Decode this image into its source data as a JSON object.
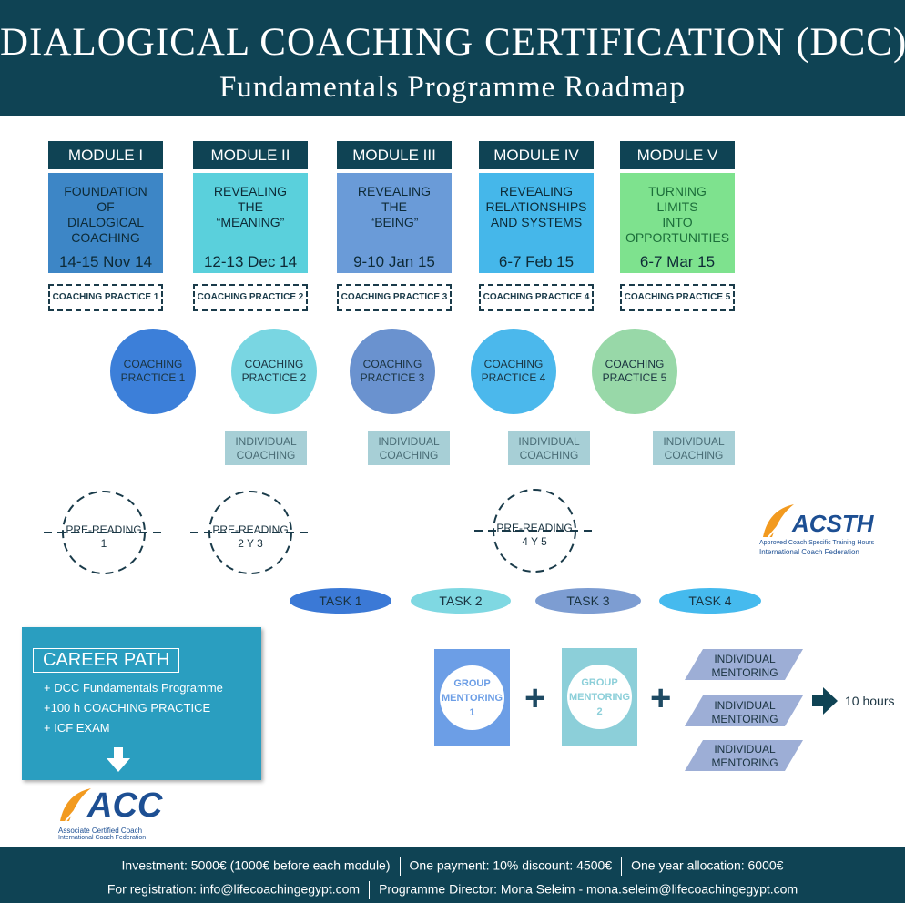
{
  "header": {
    "title": "DIALOGICAL COACHING CERTIFICATION (DCC)",
    "subtitle": "Fundamentals Programme Roadmap"
  },
  "modules": [
    {
      "label": "MODULE I",
      "name": "FOUNDATION\nOF\nDIALOGICAL\nCOACHING",
      "date": "14-15 Nov 14",
      "color": "#3d86c6",
      "text_color": "#0d2a36"
    },
    {
      "label": "MODULE II",
      "name": "REVEALING\nTHE\n“MEANING”",
      "date": "12-13 Dec 14",
      "color": "#5ad0dc",
      "text_color": "#0d2a36"
    },
    {
      "label": "MODULE III",
      "name": "REVEALING\nTHE\n“BEING”",
      "date": "9-10 Jan 15",
      "color": "#6a9bd8",
      "text_color": "#0d2a36"
    },
    {
      "label": "MODULE IV",
      "name": "REVEALING\nRELATIONSHIPS\nAND SYSTEMS",
      "date": "6-7 Feb 15",
      "color": "#45b7ea",
      "text_color": "#0d2a36"
    },
    {
      "label": "MODULE V",
      "name": "TURNING\nLIMITS\nINTO\nOPPORTUNITIES",
      "date": "6-7 Mar 15",
      "color": "#7ee28e",
      "text_color": "#1c6e3a"
    }
  ],
  "coaching_practice_labels": [
    "COACHING PRACTICE 1",
    "COACHING PRACTICE 2",
    "COACHING PRACTICE 3",
    "COACHING PRACTICE 4",
    "COACHING PRACTICE 5"
  ],
  "practice_circles": [
    {
      "label": "COACHING\nPRACTICE 1",
      "color": "#3c7fd9"
    },
    {
      "label": "COACHING\nPRACTICE 2",
      "color": "#79d6e2"
    },
    {
      "label": "COACHING\nPRACTICE 3",
      "color": "#6a92cf"
    },
    {
      "label": "COACHING\nPRACTICE 4",
      "color": "#4bb8ec"
    },
    {
      "label": "COACHING\nPRACTICE 5",
      "color": "#98d8a8"
    }
  ],
  "individual_coaching": [
    "INDIVIDUAL\nCOACHING",
    "INDIVIDUAL\nCOACHING",
    "INDIVIDUAL\nCOACHING",
    "INDIVIDUAL\nCOACHING"
  ],
  "pre_reading": [
    "PRE-READING\n1",
    "PRE-READING\n2 Y 3",
    "PRE-READING\n4 Y 5"
  ],
  "tasks": [
    {
      "label": "TASK 1",
      "color": "#3b79d6"
    },
    {
      "label": "TASK 2",
      "color": "#7fd8e2"
    },
    {
      "label": "TASK 3",
      "color": "#7d9dd2"
    },
    {
      "label": "TASK 4",
      "color": "#45baee"
    }
  ],
  "acsth_logo": {
    "text": "ACSTH",
    "line1": "Approved Coach Specific Training Hours",
    "line2": "International Coach Federation"
  },
  "career_path": {
    "title": "CAREER PATH",
    "items": [
      "+ DCC Fundamentals Programme",
      "+100 h COACHING PRACTICE",
      "+ ICF EXAM"
    ]
  },
  "acc_logo": {
    "text": "ACC",
    "line1": "Associate Certified Coach",
    "line2": "International Coach Federation"
  },
  "group_mentoring": [
    {
      "label": "GROUP\nMENTORING\n1",
      "color": "#6c9ee6",
      "text_color": "#6c9ee6"
    },
    {
      "label": "GROUP\nMENTORING\n2",
      "color": "#8ccfd9",
      "text_color": "#8ccfd9"
    }
  ],
  "plus_sign": "+",
  "individual_mentoring": [
    "INDIVIDUAL\nMENTORING",
    "INDIVIDUAL\nMENTORING",
    "INDIVIDUAL\nMENTORING"
  ],
  "hours_label": "10 hours",
  "footer": {
    "investment": "Investment: 5000€ (1000€ before each module)",
    "one_payment": "One payment: 10% discount: 4500€",
    "one_year": "One year allocation: 6000€",
    "registration": "For registration:  info@lifecoachingegypt.com",
    "director": "Programme Director: Mona Seleim - mona.seleim@lifecoachingegypt.com"
  }
}
